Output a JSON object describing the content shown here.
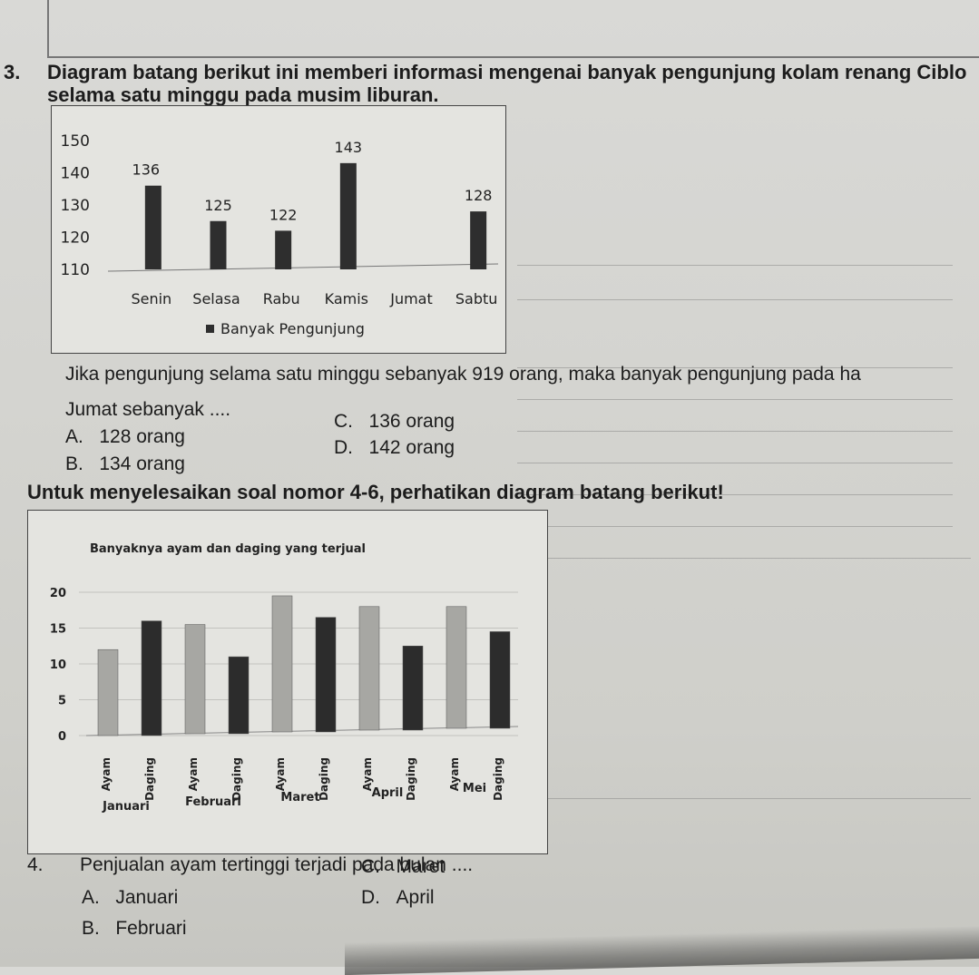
{
  "question3": {
    "number": "3.",
    "text_line1": "Diagram batang berikut ini memberi informasi mengenai banyak pengunjung kolam renang Ciblo",
    "text_line2": "selama satu minggu pada musim liburan.",
    "question_line1": "Jika pengunjung selama satu minggu sebanyak 919 orang, maka banyak pengunjung pada ha",
    "question_line2": "Jumat sebanyak ....",
    "options": [
      {
        "letter": "A.",
        "text": "128 orang"
      },
      {
        "letter": "B.",
        "text": "134 orang"
      },
      {
        "letter": "C.",
        "text": "136 orang"
      },
      {
        "letter": "D.",
        "text": "142 orang"
      }
    ]
  },
  "instruction": "Untuk menyelesaikan soal nomor 4-6, perhatikan diagram batang berikut!",
  "question4": {
    "number": "4.",
    "text": "Penjualan ayam tertinggi terjadi pada bulan ....",
    "options": [
      {
        "letter": "A.",
        "text": "Januari"
      },
      {
        "letter": "B.",
        "text": "Februari"
      },
      {
        "letter": "C.",
        "text": "Maret"
      },
      {
        "letter": "D.",
        "text": "April"
      }
    ]
  },
  "chart_data": [
    {
      "type": "bar",
      "categories": [
        "Senin",
        "Selasa",
        "Rabu",
        "Kamis",
        "Jumat",
        "Sabtu"
      ],
      "values": [
        136,
        125,
        122,
        143,
        null,
        128
      ],
      "value_labels": [
        "136",
        "125",
        "122",
        "143",
        "",
        "128"
      ],
      "legend": "Banyak Pengunjung",
      "ylim": [
        110,
        150
      ],
      "y_ticks": [
        110,
        120,
        130,
        140,
        150
      ],
      "bar_color": "#2e2e2e"
    },
    {
      "type": "bar",
      "title": "Banyaknya ayam dan daging yang terjual",
      "categories": [
        "Januari",
        "Februari",
        "Maret",
        "April",
        "Mei"
      ],
      "series": [
        {
          "name": "Ayam",
          "values": [
            12,
            15.5,
            19.5,
            18,
            18
          ],
          "color": "#a7a7a3"
        },
        {
          "name": "Daging",
          "values": [
            16,
            11,
            16.5,
            12.5,
            14.5
          ],
          "color": "#2c2c2c"
        }
      ],
      "ylim": [
        0,
        20
      ],
      "y_ticks": [
        0,
        5,
        10,
        15,
        20
      ]
    }
  ]
}
